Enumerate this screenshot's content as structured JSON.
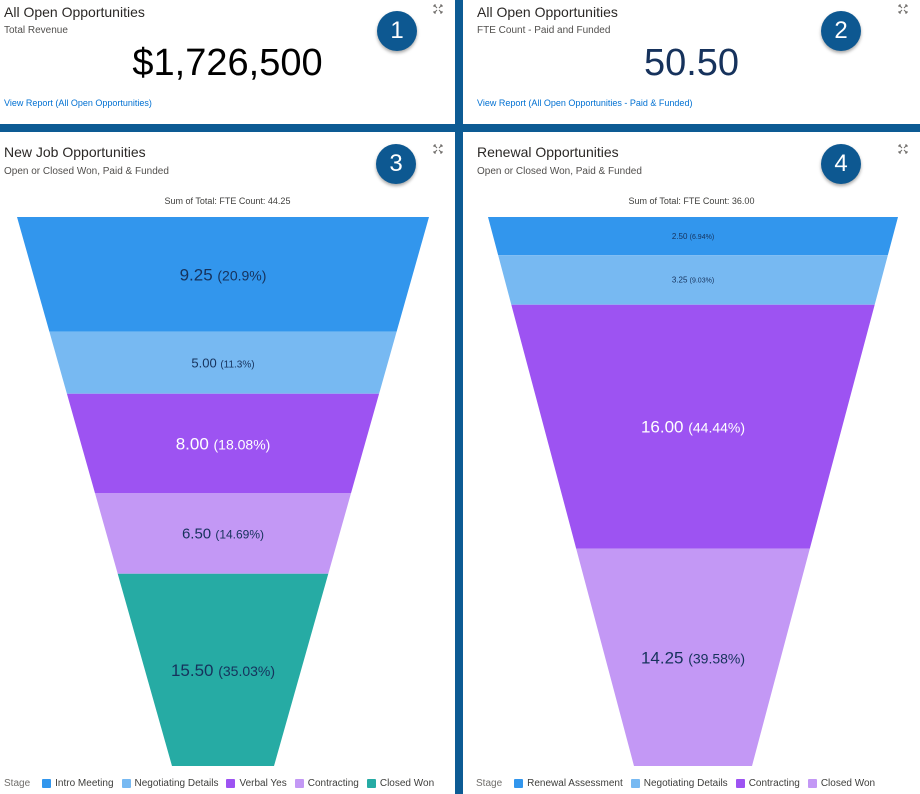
{
  "cards": [
    {
      "id": "c1",
      "title": "All Open Opportunities",
      "subtitle": "Total Revenue",
      "metric": "$1,726,500",
      "link": "View Report (All Open Opportunities)",
      "badge": "1"
    },
    {
      "id": "c2",
      "title": "All Open Opportunities",
      "subtitle": "FTE Count - Paid and Funded",
      "metric": "50.50",
      "link": "View Report (All Open Opportunities - Paid & Funded)",
      "badge": "2"
    },
    {
      "id": "c3",
      "title": "New Job Opportunities",
      "subtitle": "Open or Closed Won, Paid & Funded",
      "badge": "3",
      "chart_header": "Sum of Total: FTE Count: 44.25",
      "legend_label": "Stage"
    },
    {
      "id": "c4",
      "title": "Renewal Opportunities",
      "subtitle": "Open or Closed Won, Paid & Funded",
      "badge": "4",
      "chart_header": "Sum of Total: FTE Count: 36.00",
      "legend_label": "Stage"
    }
  ],
  "chart_data": [
    {
      "type": "funnel",
      "title": "New Job Opportunities",
      "total_label": "Sum of Total: FTE Count: 44.25",
      "legend_title": "Stage",
      "categories": [
        "Intro Meeting",
        "Negotiating Details",
        "Verbal Yes",
        "Contracting",
        "Closed Won"
      ],
      "values": [
        9.25,
        5.0,
        8.0,
        6.5,
        15.5
      ],
      "value_labels": [
        "9.25",
        "5.00",
        "8.00",
        "6.50",
        "15.50"
      ],
      "percent_labels": [
        "(20.9%)",
        "(11.3%)",
        "(18.08%)",
        "(14.69%)",
        "(35.03%)"
      ],
      "colors": [
        "#3296ed",
        "#77b9f2",
        "#9d53f2",
        "#c398f5",
        "#26aba4"
      ],
      "text_colors": [
        "#16325c",
        "#16325c",
        "#ffffff",
        "#16325c",
        "#16325c"
      ],
      "legend_placement": "bottom"
    },
    {
      "type": "funnel",
      "title": "Renewal Opportunities",
      "total_label": "Sum of Total: FTE Count: 36.00",
      "legend_title": "Stage",
      "categories": [
        "Renewal Assessment",
        "Negotiating Details",
        "Contracting",
        "Closed Won"
      ],
      "values": [
        2.5,
        3.25,
        16.0,
        14.25
      ],
      "value_labels": [
        "2.50",
        "3.25",
        "16.00",
        "14.25"
      ],
      "percent_labels": [
        "(6.94%)",
        "(9.03%)",
        "(44.44%)",
        "(39.58%)"
      ],
      "colors": [
        "#3296ed",
        "#77b9f2",
        "#9d53f2",
        "#c398f5"
      ],
      "text_colors": [
        "#16325c",
        "#16325c",
        "#ffffff",
        "#16325c"
      ],
      "legend_placement": "bottom"
    }
  ],
  "icons": {
    "expand": "expand-icon"
  }
}
